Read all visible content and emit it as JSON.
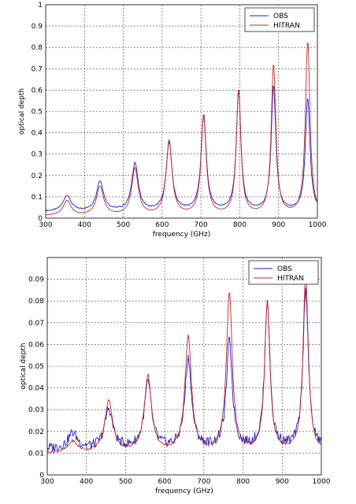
{
  "chart_data": [
    {
      "type": "line",
      "xlabel": "frequency (GHz)",
      "ylabel": "optical depth",
      "xlim": [
        300,
        1000
      ],
      "ylim": [
        0,
        1
      ],
      "xticks": [
        "300",
        "400",
        "500",
        "600",
        "700",
        "800",
        "900",
        "1000"
      ],
      "yticks": [
        "0",
        "0.1",
        "0.2",
        "0.3",
        "0.4",
        "0.5",
        "0.6",
        "0.7",
        "0.8",
        "0.9",
        "1"
      ],
      "grid": true,
      "legend_position": "top-right",
      "baseline": {
        "OBS": 0.03,
        "HITRAN": 0.01
      },
      "lines": [
        {
          "x": 355,
          "OBS": 0.105,
          "HITRAN": 0.08,
          "width": 12
        },
        {
          "x": 440,
          "OBS": 0.17,
          "HITRAN": 0.145,
          "width": 11
        },
        {
          "x": 530,
          "OBS": 0.255,
          "HITRAN": 0.23,
          "width": 10
        },
        {
          "x": 618,
          "OBS": 0.35,
          "HITRAN": 0.36,
          "width": 9
        },
        {
          "x": 707,
          "OBS": 0.48,
          "HITRAN": 0.47,
          "width": 8
        },
        {
          "x": 797,
          "OBS": 0.6,
          "HITRAN": 0.6,
          "width": 7
        },
        {
          "x": 887,
          "OBS": 0.62,
          "HITRAN": 0.72,
          "width": 7
        },
        {
          "x": 975,
          "OBS": 0.56,
          "HITRAN": 0.83,
          "width": 7
        }
      ],
      "series": [
        {
          "name": "OBS",
          "color": "#1f1fbf"
        },
        {
          "name": "HITRAN",
          "color": "#c0282b"
        }
      ]
    },
    {
      "type": "line",
      "xlabel": "frequency (GHz)",
      "ylabel": "optical depth",
      "xlim": [
        300,
        1000
      ],
      "ylim": [
        0,
        0.1
      ],
      "xticks": [
        "300",
        "400",
        "500",
        "600",
        "700",
        "800",
        "900",
        "1000"
      ],
      "yticks": [
        "0",
        "0.01",
        "0.02",
        "0.03",
        "0.04",
        "0.05",
        "0.06",
        "0.07",
        "0.08",
        "0.09"
      ],
      "grid": true,
      "legend_position": "top-right",
      "baseline": {
        "OBS": 0.012,
        "HITRAN": 0.01
      },
      "lines": [
        {
          "x": 365,
          "OBS": 0.019,
          "HITRAN": 0.015,
          "width": 14
        },
        {
          "x": 457,
          "OBS": 0.03,
          "HITRAN": 0.034,
          "width": 12
        },
        {
          "x": 557,
          "OBS": 0.042,
          "HITRAN": 0.045,
          "width": 11
        },
        {
          "x": 660,
          "OBS": 0.053,
          "HITRAN": 0.063,
          "width": 10
        },
        {
          "x": 765,
          "OBS": 0.061,
          "HITRAN": 0.083,
          "width": 9
        },
        {
          "x": 862,
          "OBS": 0.08,
          "HITRAN": 0.079,
          "width": 8
        },
        {
          "x": 960,
          "OBS": 0.086,
          "HITRAN": 0.092,
          "width": 8
        }
      ],
      "series": [
        {
          "name": "OBS",
          "color": "#1f1fbf"
        },
        {
          "name": "HITRAN",
          "color": "#c0282b"
        }
      ]
    }
  ]
}
